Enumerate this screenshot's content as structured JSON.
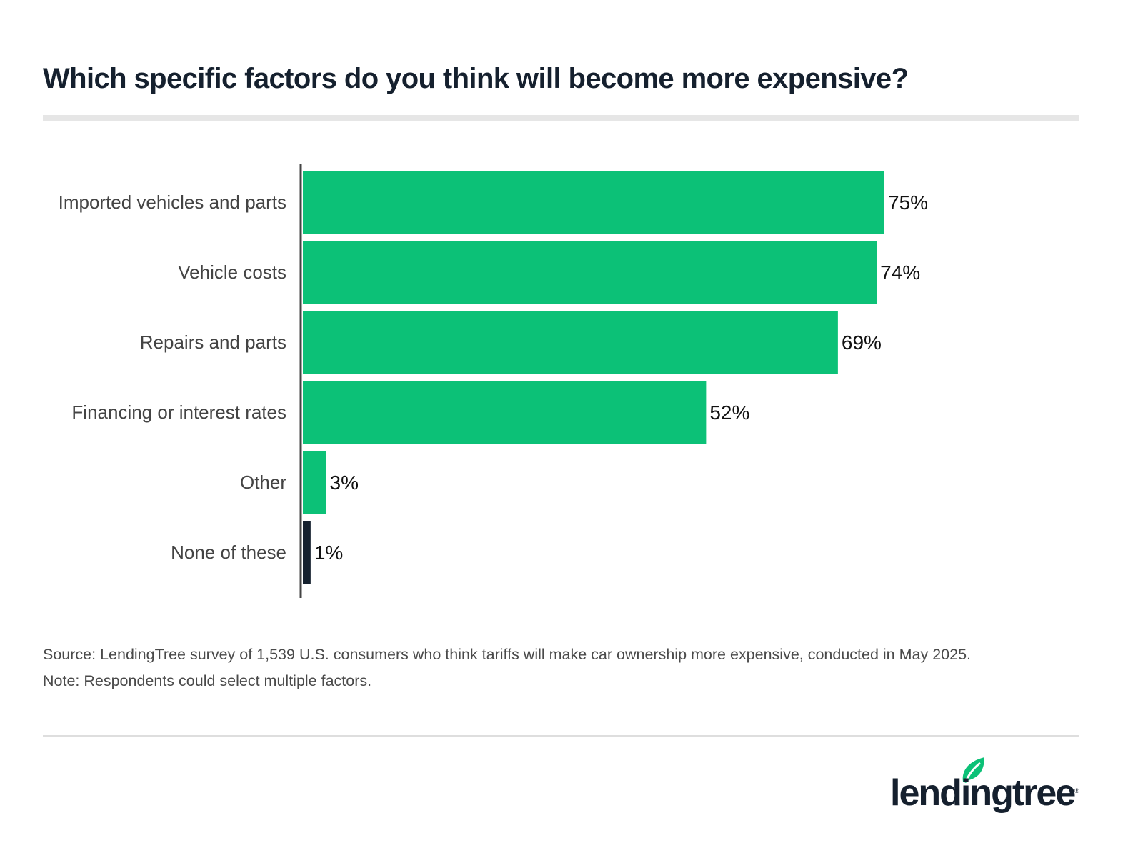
{
  "header": {
    "title": "Which specific factors do you think will become more expensive?"
  },
  "chart_data": {
    "type": "bar",
    "orientation": "horizontal",
    "title": "Which specific factors do you think will become more expensive?",
    "xlabel": "",
    "ylabel": "",
    "categories": [
      "Imported vehicles and parts",
      "Vehicle costs",
      "Repairs and parts",
      "Financing or interest rates",
      "Other",
      "None of these"
    ],
    "values": [
      75,
      74,
      69,
      52,
      3,
      1
    ],
    "value_labels": [
      "75%",
      "74%",
      "69%",
      "52%",
      "3%",
      "1%"
    ],
    "bar_colors": [
      "#0cc177",
      "#0cc177",
      "#0cc177",
      "#0cc177",
      "#0cc177",
      "#15202e"
    ],
    "unit": "%",
    "xlim": [
      0,
      75
    ],
    "grid": false,
    "legend": "none"
  },
  "footer": {
    "source": "Source: LendingTree survey of 1,539 U.S. consumers who think tariffs will make car ownership more expensive, conducted in May 2025.",
    "note": "Note: Respondents could select multiple factors.",
    "logo_text": "lendingtree",
    "logo_registered": "®"
  },
  "colors": {
    "accent": "#0cc177",
    "dark": "#15202e",
    "axis": "#444444"
  }
}
